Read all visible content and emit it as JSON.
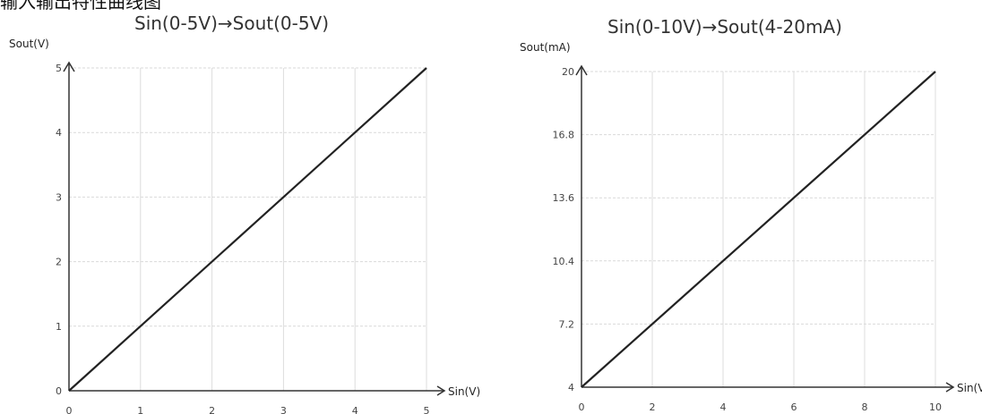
{
  "header": {
    "cut_text": "输入输出特性曲线图"
  },
  "chart_data": [
    {
      "type": "line",
      "title": "Sin(0-5V)→Sout(0-5V)",
      "xlabel": "Sin(V)",
      "ylabel": "Sout(V)",
      "x_ticks": [
        "0",
        "1",
        "2",
        "3",
        "4",
        "5"
      ],
      "y_ticks": [
        "0",
        "1",
        "2",
        "3",
        "4",
        "5"
      ],
      "xlim": [
        0,
        5
      ],
      "ylim": [
        0,
        5
      ],
      "grid": true,
      "series": [
        {
          "x": [
            0,
            5
          ],
          "y": [
            0,
            5
          ]
        }
      ]
    },
    {
      "type": "line",
      "title": "Sin(0-10V)→Sout(4-20mA)",
      "xlabel": "Sin(V)",
      "ylabel": "Sout(mA)",
      "x_ticks": [
        "0",
        "2",
        "4",
        "6",
        "8",
        "10"
      ],
      "y_ticks": [
        "4",
        "7.2",
        "10.4",
        "13.6",
        "16.8",
        "20"
      ],
      "xlim": [
        0,
        10
      ],
      "ylim": [
        4,
        20
      ],
      "grid": true,
      "series": [
        {
          "x": [
            0,
            10
          ],
          "y": [
            4,
            20
          ]
        }
      ]
    }
  ]
}
